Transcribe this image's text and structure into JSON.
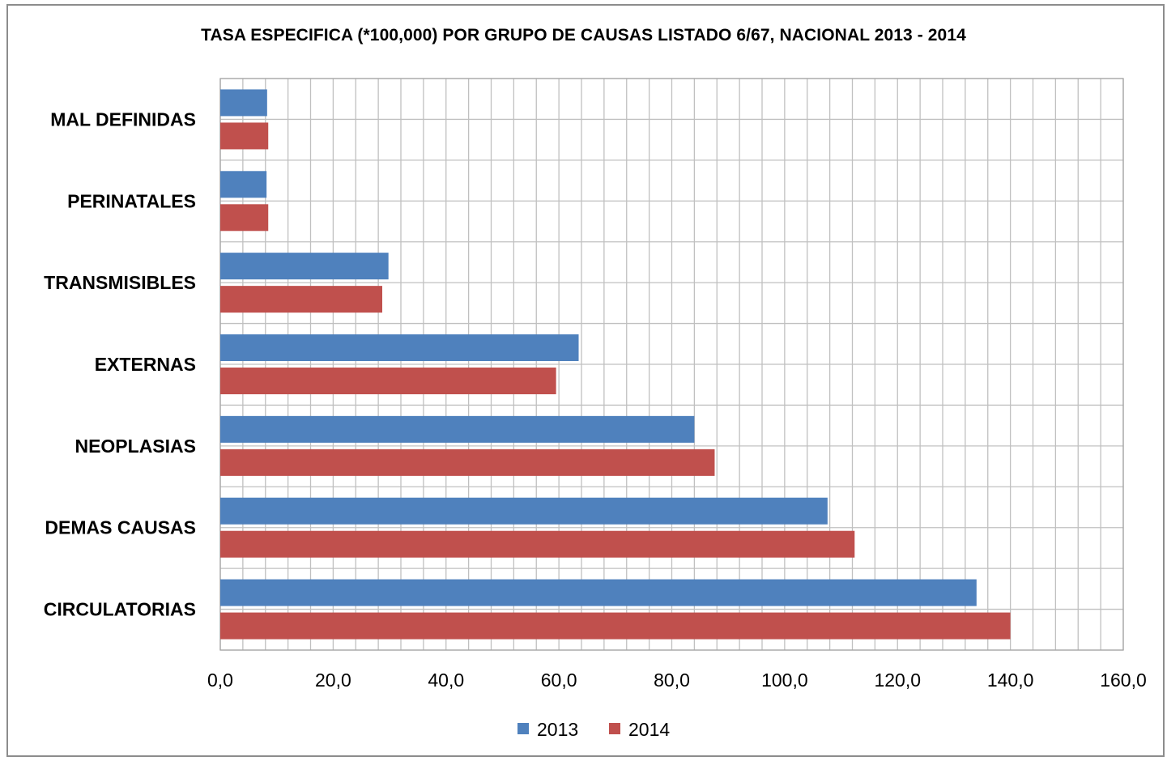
{
  "chart_data": {
    "type": "bar",
    "orientation": "horizontal",
    "title": "TASA ESPECIFICA (*100,000) POR GRUPO DE CAUSAS LISTADO 6/67, NACIONAL 2013 - 2014",
    "categories": [
      "MAL DEFINIDAS",
      "PERINATALES",
      "TRANSMISIBLES",
      "EXTERNAS",
      "NEOPLASIAS",
      "DEMAS CAUSAS",
      "CIRCULATORIAS"
    ],
    "series": [
      {
        "name": "2013",
        "color": "#4f81bd",
        "values": [
          8.3,
          8.2,
          29.8,
          63.5,
          84.0,
          107.6,
          134.0
        ]
      },
      {
        "name": "2014",
        "color": "#c0504d",
        "values": [
          8.5,
          8.5,
          28.7,
          59.5,
          87.6,
          112.4,
          140.0
        ]
      }
    ],
    "xlim": [
      0,
      160
    ],
    "x_ticks": [
      "0,0",
      "20,0",
      "40,0",
      "60,0",
      "80,0",
      "100,0",
      "120,0",
      "140,0",
      "160,0"
    ],
    "grid": true,
    "legend_position": "bottom"
  }
}
